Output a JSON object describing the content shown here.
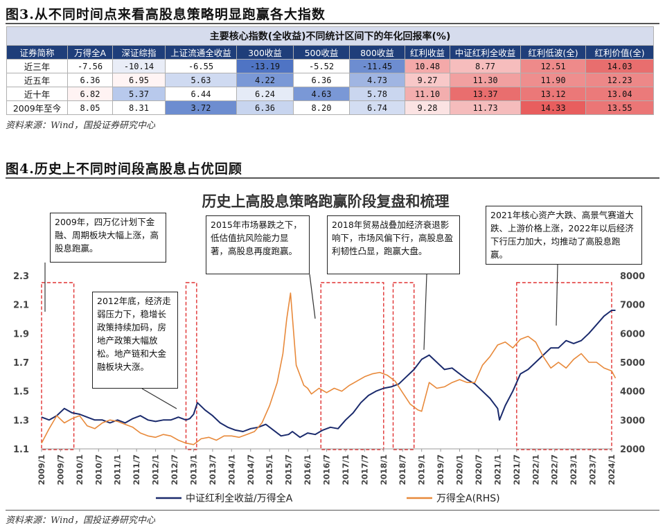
{
  "fig3": {
    "title": "图3.从不同时间点来看高股息策略明显跑赢各大指数",
    "table_caption": "主要核心指数(全收益)不同统计区间下的年化回报率(%)",
    "headers": [
      "证券简称",
      "万得全A",
      "深证综指",
      "上证流通全收益",
      "300收益",
      "500收益",
      "800收益",
      "红利收益",
      "中证红利全收益",
      "红利低波(全)",
      "红利价值(全)"
    ],
    "rows": [
      {
        "label": "近三年",
        "values": [
          "-7.56",
          "-10.14",
          "-6.55",
          "-13.19",
          "-5.52",
          "-11.45",
          "10.48",
          "8.77",
          "12.51",
          "14.03"
        ],
        "colors": [
          "#ffffff",
          "#e9edf7",
          "#ffffff",
          "#4f74c4",
          "#ffffff",
          "#6d8dd0",
          "#f4a9a9",
          "#f6bdbd",
          "#ee8a8a",
          "#e86e6e"
        ]
      },
      {
        "label": "近五年",
        "values": [
          "6.36",
          "6.95",
          "5.63",
          "4.22",
          "6.36",
          "4.73",
          "9.27",
          "11.30",
          "11.90",
          "12.23"
        ],
        "colors": [
          "#ffffff",
          "#fff4f4",
          "#cfdaf1",
          "#7a98d6",
          "#ffffff",
          "#a0b5e2",
          "#f8c8c8",
          "#f1a0a0",
          "#ee8e8e",
          "#ed8888"
        ]
      },
      {
        "label": "近十年",
        "values": [
          "6.82",
          "5.37",
          "6.44",
          "6.24",
          "4.63",
          "5.78",
          "11.10",
          "13.37",
          "13.12",
          "13.04"
        ],
        "colors": [
          "#fff3f3",
          "#b8c9ec",
          "#ffffff",
          "#e5ebf7",
          "#7a98d6",
          "#cad6ef",
          "#f3aeae",
          "#e96e6e",
          "#eb7878",
          "#eb7a7a"
        ]
      },
      {
        "label": "2009年至今",
        "values": [
          "8.05",
          "8.31",
          "3.72",
          "6.36",
          "8.20",
          "6.74",
          "9.28",
          "11.73",
          "14.33",
          "13.55"
        ],
        "colors": [
          "#ffffff",
          "#ffffff",
          "#6d8dd0",
          "#c8d5ef",
          "#ffffff",
          "#d3ddf2",
          "#fbe3e3",
          "#f5bcbc",
          "#e85e5e",
          "#eb7676"
        ]
      }
    ],
    "source": "资料来源：Wind，国投证券研究中心"
  },
  "fig4": {
    "title": "图4.历史上不同时间段高股息占优回顾",
    "source": "资料来源：Wind，国投证券研究中心",
    "callouts": [
      "2009年，四万亿计划下金融、周期板块大幅上涨，高股息跑赢。",
      "2012年底，经济走弱压力下，稳增长政策持续加码，房地产政策大幅放松。地产链和大金融板块大涨。",
      "2015年市场暴跌之下，低估值抗风险能力显著，高股息再度跑赢。",
      "2018年贸易战叠加经济衰退影响下，市场风偏下行，高股息盈利韧性凸显，跑赢大盘。",
      "2021年核心资产大跌、高景气赛道大跌、上游价格上涨，2022年以后经济下行压力加大，均推动了高股息跑赢。"
    ]
  },
  "chart_data": {
    "type": "line",
    "title": "历史上高股息策略跑赢阶段复盘和梳理",
    "x_ticks": [
      "2009/1",
      "2009/7",
      "2010/1",
      "2010/7",
      "2011/1",
      "2011/7",
      "2012/1",
      "2012/7",
      "2013/1",
      "2013/7",
      "2014/1",
      "2014/7",
      "2015/1",
      "2015/7",
      "2016/1",
      "2016/7",
      "2017/1",
      "2017/7",
      "2018/1",
      "2018/7",
      "2019/1",
      "2019/7",
      "2020/1",
      "2020/7",
      "2021/1",
      "2021/7",
      "2022/1",
      "2022/7",
      "2023/1",
      "2023/7",
      "2024/1"
    ],
    "y_left": {
      "min": 1.1,
      "max": 2.3,
      "ticks": [
        "1.1",
        "1.3",
        "1.5",
        "1.7",
        "1.9",
        "2.1",
        "2.3"
      ]
    },
    "y_right": {
      "min": 2000,
      "max": 8000,
      "ticks": [
        "2000",
        "3000",
        "4000",
        "5000",
        "6000",
        "7000",
        "8000"
      ]
    },
    "series": [
      {
        "name": "中证红利全收益/万得全A",
        "axis": "left",
        "color": "#1a2a6c",
        "x": [
          2009.0,
          2009.2,
          2009.4,
          2009.6,
          2009.8,
          2010.0,
          2010.2,
          2010.4,
          2010.6,
          2010.8,
          2011.0,
          2011.2,
          2011.4,
          2011.6,
          2011.8,
          2012.0,
          2012.2,
          2012.4,
          2012.6,
          2012.8,
          2012.9,
          2013.0,
          2013.1,
          2013.3,
          2013.5,
          2013.7,
          2013.9,
          2014.1,
          2014.3,
          2014.5,
          2014.7,
          2014.9,
          2015.1,
          2015.3,
          2015.5,
          2015.6,
          2015.8,
          2016.0,
          2016.2,
          2016.4,
          2016.6,
          2016.8,
          2017.0,
          2017.2,
          2017.4,
          2017.6,
          2017.8,
          2018.0,
          2018.2,
          2018.4,
          2018.6,
          2018.8,
          2019.0,
          2019.2,
          2019.4,
          2019.6,
          2019.8,
          2020.0,
          2020.2,
          2020.4,
          2020.6,
          2020.8,
          2021.0,
          2021.05,
          2021.2,
          2021.4,
          2021.6,
          2021.8,
          2022.0,
          2022.2,
          2022.4,
          2022.6,
          2022.8,
          2023.0,
          2023.2,
          2023.4,
          2023.6,
          2023.8,
          2024.0,
          2024.1
        ],
        "y": [
          1.32,
          1.3,
          1.33,
          1.38,
          1.35,
          1.34,
          1.32,
          1.3,
          1.3,
          1.28,
          1.3,
          1.28,
          1.31,
          1.33,
          1.3,
          1.29,
          1.3,
          1.3,
          1.32,
          1.3,
          1.31,
          1.34,
          1.42,
          1.37,
          1.33,
          1.28,
          1.25,
          1.23,
          1.22,
          1.24,
          1.25,
          1.27,
          1.23,
          1.19,
          1.2,
          1.22,
          1.18,
          1.21,
          1.2,
          1.23,
          1.25,
          1.24,
          1.3,
          1.35,
          1.42,
          1.47,
          1.5,
          1.52,
          1.53,
          1.55,
          1.6,
          1.65,
          1.72,
          1.75,
          1.7,
          1.65,
          1.66,
          1.62,
          1.58,
          1.55,
          1.5,
          1.45,
          1.38,
          1.3,
          1.4,
          1.5,
          1.62,
          1.65,
          1.7,
          1.75,
          1.8,
          1.8,
          1.85,
          1.83,
          1.85,
          1.9,
          1.96,
          2.02,
          2.06,
          2.06
        ]
      },
      {
        "name": "万得全A(RHS)",
        "axis": "right",
        "color": "#e8893a",
        "x": [
          2009.0,
          2009.2,
          2009.4,
          2009.6,
          2009.8,
          2010.0,
          2010.2,
          2010.4,
          2010.6,
          2010.8,
          2011.0,
          2011.2,
          2011.4,
          2011.6,
          2011.8,
          2012.0,
          2012.2,
          2012.4,
          2012.6,
          2012.8,
          2013.0,
          2013.2,
          2013.4,
          2013.6,
          2013.8,
          2014.0,
          2014.2,
          2014.4,
          2014.6,
          2014.8,
          2015.0,
          2015.2,
          2015.35,
          2015.45,
          2015.55,
          2015.7,
          2015.9,
          2016.0,
          2016.1,
          2016.3,
          2016.5,
          2016.7,
          2016.9,
          2017.1,
          2017.3,
          2017.5,
          2017.7,
          2017.9,
          2018.1,
          2018.3,
          2018.5,
          2018.7,
          2018.9,
          2019.0,
          2019.2,
          2019.4,
          2019.6,
          2019.8,
          2020.0,
          2020.2,
          2020.4,
          2020.6,
          2020.8,
          2021.0,
          2021.2,
          2021.4,
          2021.6,
          2021.8,
          2022.0,
          2022.2,
          2022.4,
          2022.6,
          2022.8,
          2023.0,
          2023.2,
          2023.4,
          2023.6,
          2023.8,
          2024.0,
          2024.1
        ],
        "y": [
          2200,
          2700,
          3150,
          2900,
          3050,
          3150,
          2800,
          2700,
          2900,
          3000,
          2950,
          2850,
          2750,
          2550,
          2450,
          2400,
          2500,
          2450,
          2300,
          2200,
          2150,
          2350,
          2400,
          2300,
          2450,
          2450,
          2400,
          2500,
          2600,
          2900,
          3500,
          4300,
          5300,
          6500,
          7400,
          4900,
          4200,
          4100,
          3900,
          4100,
          3950,
          4100,
          4000,
          4200,
          4350,
          4500,
          4600,
          4650,
          4550,
          4350,
          3950,
          3550,
          3350,
          3300,
          4300,
          4100,
          4150,
          4300,
          4400,
          4300,
          4300,
          4900,
          5200,
          5600,
          5700,
          5500,
          5800,
          5900,
          5700,
          5200,
          4800,
          5000,
          4800,
          5100,
          5300,
          5000,
          5000,
          4800,
          4700,
          4450
        ]
      }
    ]
  }
}
